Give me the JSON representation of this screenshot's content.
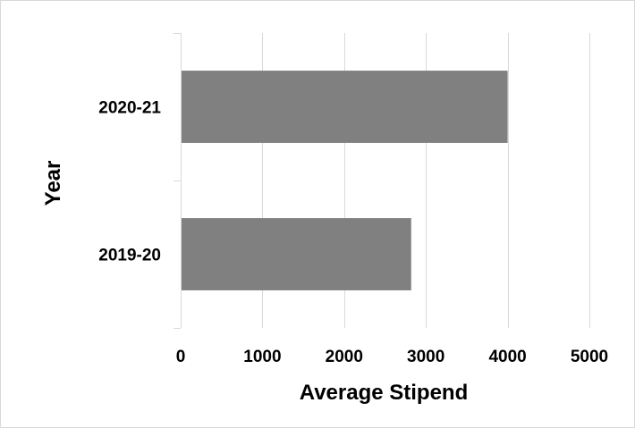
{
  "chart_data": {
    "type": "bar",
    "orientation": "horizontal",
    "categories": [
      "2020-21",
      "2019-20"
    ],
    "values": [
      4000,
      2820
    ],
    "title": "",
    "xlabel": "Average Stipend",
    "ylabel": "Year",
    "xlim": [
      0,
      5000
    ],
    "xticks": [
      "0",
      "1000",
      "2000",
      "3000",
      "4000",
      "5000"
    ],
    "grid": "vertical",
    "legend": "none",
    "bar_color": "#808080",
    "grid_color": "#d9d9d9"
  }
}
